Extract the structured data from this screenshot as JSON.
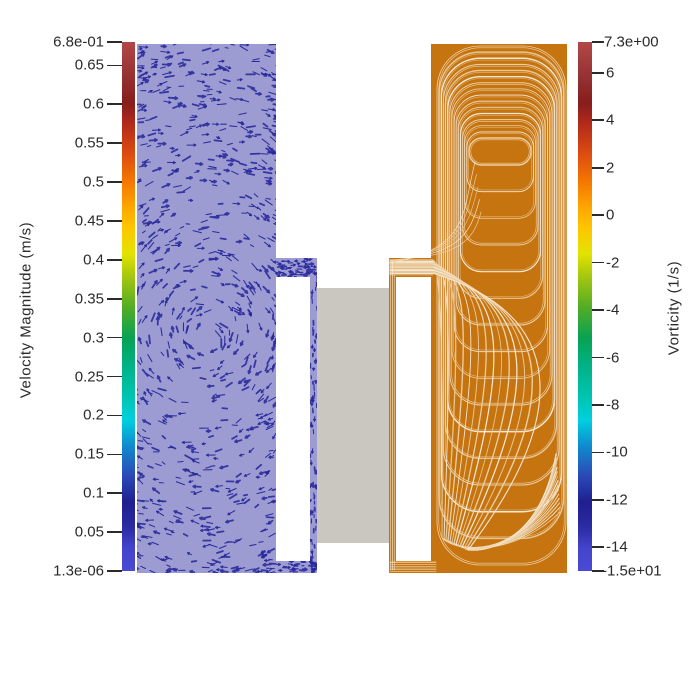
{
  "view": {
    "type": "scientific-visualization",
    "background": "#ffffff",
    "description": "Side-by-side CFD result panels: left chamber rendered with velocity vector glyphs, right chamber rendered with streamlines, a solid gray block between the two chambers, and a vertical rainbow colorbar legend on each side."
  },
  "chart_data": [
    {
      "type": "colorbar",
      "id": "velocity",
      "side": "left",
      "title": "Velocity Magnitude (m/s)",
      "min": 1.3e-06,
      "max": 0.68,
      "min_label": "1.3e-06",
      "max_label": "6.8e-01",
      "tick_values": [
        0.65,
        0.6,
        0.55,
        0.5,
        0.45,
        0.4,
        0.35,
        0.3,
        0.25,
        0.2,
        0.15,
        0.1,
        0.05
      ],
      "tick_labels": [
        "0.65",
        "0.6",
        "0.55",
        "0.5",
        "0.45",
        "0.4",
        "0.35",
        "0.3",
        "0.25",
        "0.2",
        "0.15",
        "0.1",
        "0.05"
      ]
    },
    {
      "type": "colorbar",
      "id": "vorticity",
      "side": "right",
      "title": "Vorticity (1/s)",
      "min": -15,
      "max": 7.3,
      "min_label": "-1.5e+01",
      "max_label": "7.3e+00",
      "tick_values": [
        6,
        4,
        2,
        0,
        -2,
        -4,
        -6,
        -8,
        -10,
        -12,
        -14
      ],
      "tick_labels": [
        "6",
        "4",
        "2",
        "0",
        "-2",
        "-4",
        "-6",
        "-8",
        "-10",
        "-12",
        "-14"
      ]
    },
    {
      "type": "vector-field",
      "id": "velocity-glyphs",
      "panel": "left-chamber",
      "fill_color": "#9c9cd3",
      "glyph_color": "#26269a",
      "pattern": "dense short arrow glyphs forming a large recirculating vortex filling the chamber, with flow continuing through the thin channel around the internal baffle"
    },
    {
      "type": "streamlines",
      "id": "vorticity-streamlines",
      "panel": "right-chamber",
      "fill_color": "#c6740f",
      "line_colors": [
        "#eccfa4",
        "#f6e8d7",
        "#e7c593"
      ],
      "pattern": "nested recirculation loops concentrated near the top of the chamber, fed by a fan of streamlines entering from the channel mouth at mid-left and sweeping down to the bottom wall"
    }
  ],
  "colormap_stops": [
    {
      "p": 0.0,
      "c": "#4a4ad4"
    },
    {
      "p": 0.045,
      "c": "#4343cb"
    },
    {
      "p": 0.085,
      "c": "#2a2aa2"
    },
    {
      "p": 0.13,
      "c": "#1f1f90"
    },
    {
      "p": 0.18,
      "c": "#2b49b7"
    },
    {
      "p": 0.24,
      "c": "#0e8fd0"
    },
    {
      "p": 0.285,
      "c": "#00cfe0"
    },
    {
      "p": 0.33,
      "c": "#00c4b0"
    },
    {
      "p": 0.385,
      "c": "#00b388"
    },
    {
      "p": 0.44,
      "c": "#07a254"
    },
    {
      "p": 0.5,
      "c": "#55ad24"
    },
    {
      "p": 0.56,
      "c": "#a9c90e"
    },
    {
      "p": 0.6,
      "c": "#e3e300"
    },
    {
      "p": 0.65,
      "c": "#ffc400"
    },
    {
      "p": 0.69,
      "c": "#fda400"
    },
    {
      "p": 0.735,
      "c": "#f57800"
    },
    {
      "p": 0.79,
      "c": "#dc4b10"
    },
    {
      "p": 0.845,
      "c": "#b22a1a"
    },
    {
      "p": 0.885,
      "c": "#871d1d"
    },
    {
      "p": 0.93,
      "c": "#953030"
    },
    {
      "p": 1.0,
      "c": "#b14848"
    }
  ],
  "obstacle": {
    "fill_color": "#cac7c0"
  },
  "text_color": "#2a2a2a"
}
